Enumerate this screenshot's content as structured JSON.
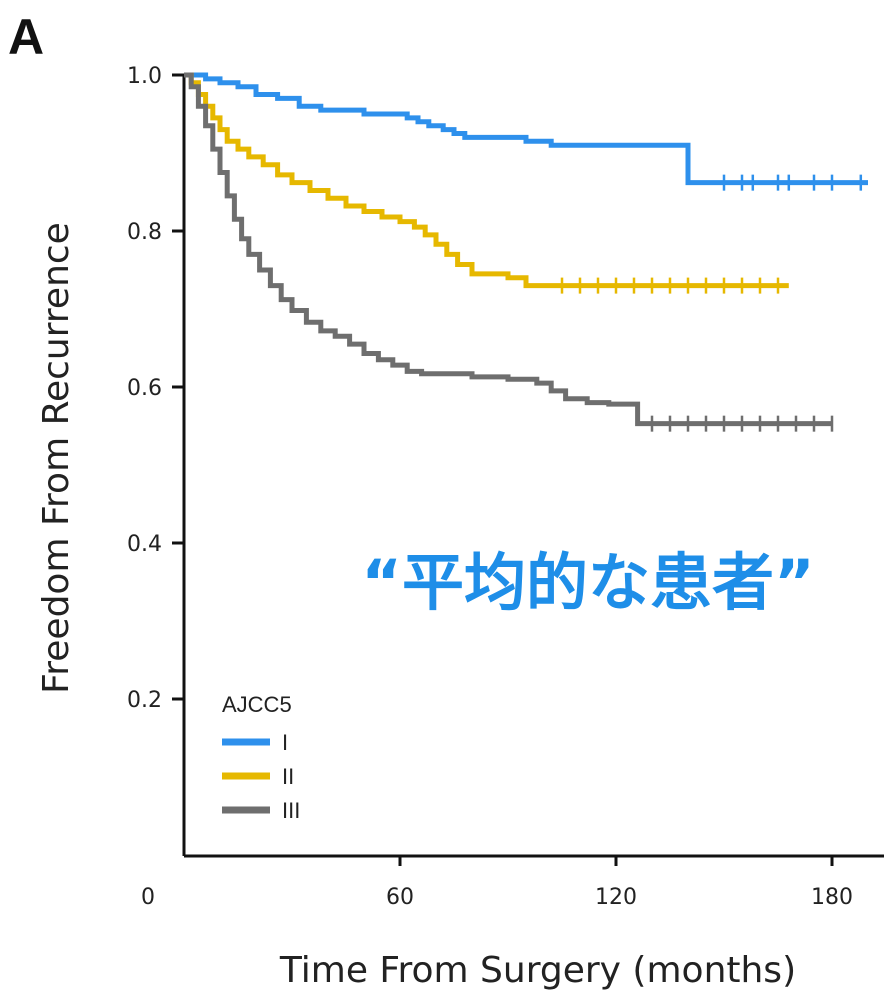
{
  "panel_label": "A",
  "annotation": {
    "text": "“平均的な患者”",
    "color": "#1e8ee8"
  },
  "chart_data": {
    "type": "line",
    "subtype": "kaplan-meier step curves with censor ticks",
    "xlabel": "Time From Surgery (months)",
    "ylabel": "Freedom From Recurrence",
    "xlim": [
      0,
      192
    ],
    "ylim": [
      0,
      1.0
    ],
    "x_ticks": [
      0,
      60,
      120,
      180
    ],
    "x_tick_labels": [
      "0",
      "60",
      "120",
      "180"
    ],
    "y_ticks": [
      0.2,
      0.4,
      0.6,
      0.8,
      1.0
    ],
    "y_tick_labels": [
      "0.2",
      "0.4",
      "0.6",
      "0.8",
      "1.0"
    ],
    "grid": false,
    "legend": {
      "title": "AJCC5",
      "position": "bottom-left"
    },
    "series": [
      {
        "name": "I",
        "color": "#2e90ec",
        "points": [
          [
            0,
            1.0
          ],
          [
            3,
            1.0
          ],
          [
            6,
            0.995
          ],
          [
            10,
            0.99
          ],
          [
            15,
            0.985
          ],
          [
            20,
            0.975
          ],
          [
            26,
            0.97
          ],
          [
            32,
            0.96
          ],
          [
            38,
            0.955
          ],
          [
            50,
            0.95
          ],
          [
            62,
            0.945
          ],
          [
            65,
            0.94
          ],
          [
            68,
            0.935
          ],
          [
            72,
            0.93
          ],
          [
            75,
            0.925
          ],
          [
            78,
            0.92
          ],
          [
            95,
            0.915
          ],
          [
            102,
            0.91
          ],
          [
            110,
            0.91
          ],
          [
            126,
            0.91
          ],
          [
            140,
            0.91
          ],
          [
            140,
            0.862
          ],
          [
            190,
            0.862
          ]
        ],
        "censor_x": [
          150,
          155,
          158,
          165,
          168,
          175,
          180,
          188
        ]
      },
      {
        "name": "II",
        "color": "#e6b800",
        "points": [
          [
            0,
            1.0
          ],
          [
            2,
            0.99
          ],
          [
            4,
            0.975
          ],
          [
            6,
            0.96
          ],
          [
            8,
            0.945
          ],
          [
            10,
            0.93
          ],
          [
            12,
            0.915
          ],
          [
            15,
            0.905
          ],
          [
            18,
            0.895
          ],
          [
            22,
            0.885
          ],
          [
            26,
            0.872
          ],
          [
            30,
            0.862
          ],
          [
            35,
            0.852
          ],
          [
            40,
            0.842
          ],
          [
            45,
            0.832
          ],
          [
            50,
            0.825
          ],
          [
            55,
            0.818
          ],
          [
            60,
            0.812
          ],
          [
            64,
            0.805
          ],
          [
            67,
            0.795
          ],
          [
            70,
            0.783
          ],
          [
            73,
            0.77
          ],
          [
            76,
            0.757
          ],
          [
            80,
            0.745
          ],
          [
            90,
            0.74
          ],
          [
            95,
            0.73
          ],
          [
            120,
            0.73
          ],
          [
            168,
            0.73
          ]
        ],
        "censor_x": [
          105,
          110,
          115,
          120,
          125,
          130,
          135,
          140,
          145,
          150,
          155,
          160,
          165
        ]
      },
      {
        "name": "III",
        "color": "#6e6e6e",
        "points": [
          [
            0,
            1.0
          ],
          [
            2,
            0.985
          ],
          [
            4,
            0.96
          ],
          [
            6,
            0.935
          ],
          [
            8,
            0.905
          ],
          [
            10,
            0.875
          ],
          [
            12,
            0.845
          ],
          [
            14,
            0.815
          ],
          [
            16,
            0.79
          ],
          [
            18,
            0.77
          ],
          [
            21,
            0.75
          ],
          [
            24,
            0.73
          ],
          [
            27,
            0.712
          ],
          [
            30,
            0.698
          ],
          [
            34,
            0.683
          ],
          [
            38,
            0.672
          ],
          [
            42,
            0.665
          ],
          [
            46,
            0.655
          ],
          [
            50,
            0.643
          ],
          [
            54,
            0.635
          ],
          [
            58,
            0.628
          ],
          [
            62,
            0.62
          ],
          [
            66,
            0.617
          ],
          [
            72,
            0.617
          ],
          [
            80,
            0.613
          ],
          [
            90,
            0.61
          ],
          [
            98,
            0.605
          ],
          [
            102,
            0.595
          ],
          [
            106,
            0.585
          ],
          [
            112,
            0.58
          ],
          [
            118,
            0.578
          ],
          [
            125,
            0.578
          ],
          [
            126,
            0.553
          ],
          [
            180,
            0.553
          ]
        ],
        "censor_x": [
          130,
          135,
          140,
          145,
          150,
          155,
          160,
          165,
          170,
          175,
          180
        ]
      }
    ]
  }
}
